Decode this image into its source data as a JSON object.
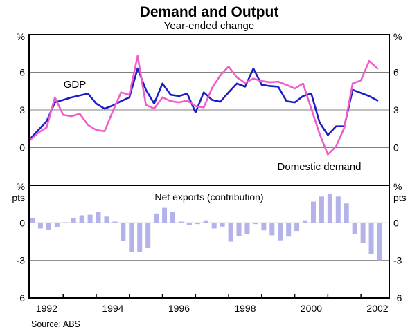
{
  "chart_data": {
    "type": "combo_line_bar",
    "title": "Demand and Output",
    "subtitle": "Year-ended change",
    "source": "Source: ABS",
    "background": "#ffffff",
    "grid_color": "#808080",
    "x_quarters": [
      "Dec-91",
      "Mar-92",
      "Jun-92",
      "Sep-92",
      "Dec-92",
      "Mar-93",
      "Jun-93",
      "Sep-93",
      "Dec-93",
      "Mar-94",
      "Jun-94",
      "Sep-94",
      "Dec-94",
      "Mar-95",
      "Jun-95",
      "Sep-95",
      "Dec-95",
      "Mar-96",
      "Jun-96",
      "Sep-96",
      "Dec-96",
      "Mar-97",
      "Jun-97",
      "Sep-97",
      "Dec-97",
      "Mar-98",
      "Jun-98",
      "Sep-98",
      "Dec-98",
      "Mar-99",
      "Jun-99",
      "Sep-99",
      "Dec-99",
      "Mar-00",
      "Jun-00",
      "Sep-00",
      "Dec-00",
      "Mar-01",
      "Jun-01",
      "Sep-01",
      "Dec-01",
      "Mar-02",
      "Jun-02"
    ],
    "x_axis_year_labels": [
      "1992",
      "1994",
      "1996",
      "1998",
      "2000",
      "2002"
    ],
    "panels": [
      {
        "id": "top",
        "type": "line",
        "ylim": [
          -3,
          9
        ],
        "unit_label": "%",
        "gridline_values": [
          6,
          3,
          0
        ],
        "ticks": [
          {
            "value": 6,
            "label": "6"
          },
          {
            "value": 3,
            "label": "3"
          },
          {
            "value": 0,
            "label": "0"
          }
        ],
        "series": [
          {
            "name": "GDP",
            "color": "#1c1cc8",
            "values": [
              0.7,
              1.4,
              2.1,
              3.6,
              3.8,
              4.0,
              4.15,
              4.3,
              3.5,
              3.1,
              3.35,
              3.7,
              4.0,
              6.3,
              4.6,
              3.5,
              5.1,
              4.2,
              4.1,
              4.3,
              2.8,
              4.4,
              3.8,
              3.65,
              4.4,
              5.1,
              4.85,
              6.3,
              5.0,
              4.9,
              4.85,
              3.7,
              3.6,
              4.1,
              4.3,
              2.0,
              1.0,
              1.7,
              1.7,
              4.6,
              4.35,
              4.1,
              3.75
            ]
          },
          {
            "name": "Domestic demand",
            "color": "#ee5ec8",
            "values": [
              0.6,
              1.2,
              1.6,
              4.0,
              2.6,
              2.5,
              2.7,
              1.8,
              1.4,
              1.3,
              2.9,
              4.4,
              4.2,
              7.3,
              3.4,
              3.1,
              4.0,
              3.7,
              3.6,
              3.75,
              3.3,
              3.2,
              4.75,
              5.75,
              6.45,
              5.6,
              5.15,
              5.5,
              5.3,
              5.2,
              5.25,
              5.0,
              4.7,
              5.1,
              3.1,
              1.1,
              -0.55,
              0.1,
              1.6,
              5.1,
              5.35,
              6.9,
              6.3
            ]
          }
        ]
      },
      {
        "id": "bottom",
        "type": "bar",
        "ylim": [
          -6,
          3
        ],
        "unit_label_lines": [
          "%",
          "pts"
        ],
        "gridline_values": [
          0,
          -3
        ],
        "ticks": [
          {
            "value": 0,
            "label": "0"
          },
          {
            "value": -3,
            "label": "-3"
          },
          {
            "value": -6,
            "label": "-6"
          }
        ],
        "series": [
          {
            "name": "Net exports (contribution)",
            "color": "#b3b3ea",
            "values": [
              0.35,
              -0.45,
              -0.55,
              -0.35,
              0.05,
              0.35,
              0.6,
              0.65,
              0.85,
              0.5,
              0.1,
              -1.45,
              -2.3,
              -2.35,
              -2.0,
              0.75,
              1.2,
              0.85,
              0.1,
              -0.15,
              -0.1,
              0.2,
              -0.45,
              -0.3,
              -1.5,
              -1.05,
              -0.9,
              -0.1,
              -0.6,
              -1.0,
              -1.4,
              -1.1,
              -0.65,
              0.2,
              1.7,
              2.1,
              2.3,
              2.1,
              1.55,
              -0.9,
              -1.6,
              -2.5,
              -3.0
            ]
          }
        ]
      }
    ]
  }
}
